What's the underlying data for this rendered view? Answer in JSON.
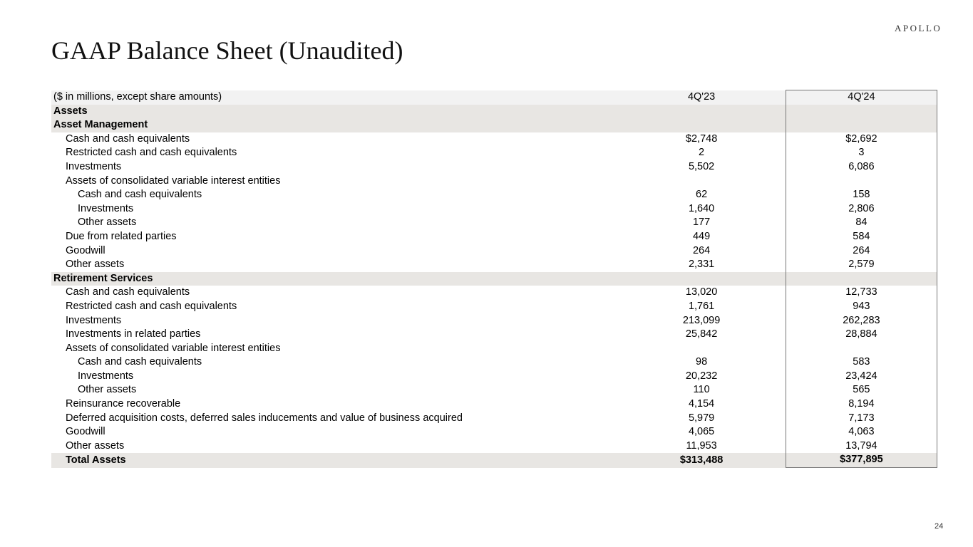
{
  "logo": "APOLLO",
  "title": "GAAP Balance Sheet (Unaudited)",
  "page_number": "24",
  "table": {
    "header": {
      "label": "($ in millions, except share amounts)",
      "col1": "4Q'23",
      "col2": "4Q'24"
    },
    "rows": [
      {
        "type": "sec",
        "label": "Assets",
        "a": "",
        "b": ""
      },
      {
        "type": "sec",
        "label": "Asset Management",
        "a": "",
        "b": ""
      },
      {
        "type": "row",
        "level": 1,
        "label": "Cash and cash equivalents",
        "a": "$2,748",
        "b": "$2,692"
      },
      {
        "type": "row",
        "level": 1,
        "label": "Restricted cash and cash equivalents",
        "a": "2",
        "b": "3"
      },
      {
        "type": "row",
        "level": 1,
        "label": "Investments",
        "a": "5,502",
        "b": "6,086"
      },
      {
        "type": "row",
        "level": 1,
        "label": "Assets of consolidated variable interest entities",
        "a": "",
        "b": ""
      },
      {
        "type": "row",
        "level": 2,
        "label": "Cash and cash equivalents",
        "a": "62",
        "b": "158"
      },
      {
        "type": "row",
        "level": 2,
        "label": "Investments",
        "a": "1,640",
        "b": "2,806"
      },
      {
        "type": "row",
        "level": 2,
        "label": "Other assets",
        "a": "177",
        "b": "84"
      },
      {
        "type": "row",
        "level": 1,
        "label": "Due from related parties",
        "a": "449",
        "b": "584"
      },
      {
        "type": "row",
        "level": 1,
        "label": "Goodwill",
        "a": "264",
        "b": "264"
      },
      {
        "type": "row",
        "level": 1,
        "label": "Other assets",
        "a": "2,331",
        "b": "2,579"
      },
      {
        "type": "sec",
        "label": "Retirement Services",
        "a": "",
        "b": ""
      },
      {
        "type": "row",
        "level": 1,
        "label": "Cash and cash equivalents",
        "a": "13,020",
        "b": "12,733"
      },
      {
        "type": "row",
        "level": 1,
        "label": "Restricted cash and cash equivalents",
        "a": "1,761",
        "b": "943"
      },
      {
        "type": "row",
        "level": 1,
        "label": "Investments",
        "a": "213,099",
        "b": "262,283"
      },
      {
        "type": "row",
        "level": 1,
        "label": "Investments in related parties",
        "a": "25,842",
        "b": "28,884"
      },
      {
        "type": "row",
        "level": 1,
        "label": "Assets of consolidated variable interest entities",
        "a": "",
        "b": ""
      },
      {
        "type": "row",
        "level": 2,
        "label": "Cash and cash equivalents",
        "a": "98",
        "b": "583"
      },
      {
        "type": "row",
        "level": 2,
        "label": "Investments",
        "a": "20,232",
        "b": "23,424"
      },
      {
        "type": "row",
        "level": 2,
        "label": "Other assets",
        "a": "110",
        "b": "565"
      },
      {
        "type": "row",
        "level": 1,
        "label": "Reinsurance recoverable",
        "a": "4,154",
        "b": "8,194"
      },
      {
        "type": "row",
        "level": 1,
        "label": "Deferred acquisition costs, deferred sales inducements and value of business acquired",
        "a": "5,979",
        "b": "7,173"
      },
      {
        "type": "row",
        "level": 1,
        "label": "Goodwill",
        "a": "4,065",
        "b": "4,063"
      },
      {
        "type": "row",
        "level": 1,
        "label": "Other assets",
        "a": "11,953",
        "b": "13,794"
      },
      {
        "type": "tot",
        "level": 1,
        "label": "Total Assets",
        "a": "$313,488",
        "b": "$377,895"
      }
    ]
  }
}
